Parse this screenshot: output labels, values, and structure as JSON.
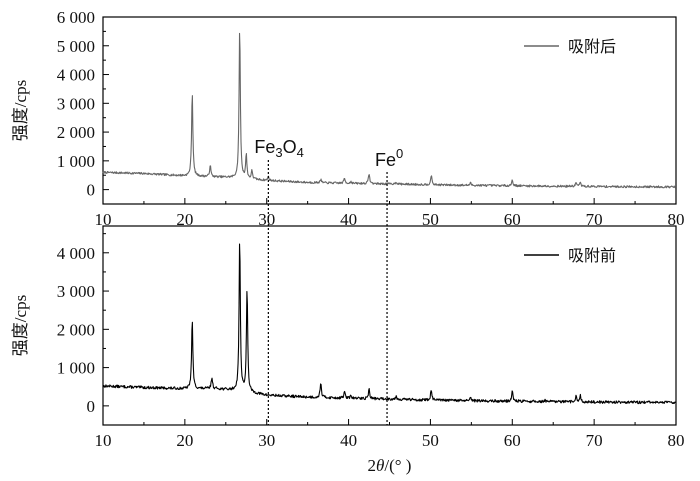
{
  "chart_data": [
    {
      "type": "line",
      "panel": "top",
      "xlim": [
        10,
        80
      ],
      "ylim": [
        -500,
        6000
      ],
      "x_ticks": [
        10,
        20,
        30,
        40,
        50,
        60,
        70,
        80
      ],
      "y_ticks": [
        0,
        1000,
        2000,
        3000,
        4000,
        5000,
        6000
      ],
      "y_tick_labels": [
        "0",
        "1 000",
        "2 000",
        "3 000",
        "4 000",
        "5 000",
        "6 000"
      ],
      "ylabel": "强度/cps",
      "legend": "top-right",
      "series": [
        {
          "name": "吸附后",
          "color": "#666666",
          "baseline": [
            [
              10,
              600
            ],
            [
              15,
              560
            ],
            [
              20,
              480
            ],
            [
              25,
              430
            ],
            [
              30,
              320
            ],
            [
              35,
              250
            ],
            [
              40,
              220
            ],
            [
              45,
              200
            ],
            [
              50,
              170
            ],
            [
              55,
              150
            ],
            [
              60,
              135
            ],
            [
              65,
              120
            ],
            [
              70,
              110
            ],
            [
              75,
              100
            ],
            [
              80,
              95
            ]
          ],
          "peaks": [
            [
              20.9,
              3400
            ],
            [
              23.1,
              850
            ],
            [
              26.7,
              5700
            ],
            [
              27.5,
              1200
            ],
            [
              28.2,
              650
            ],
            [
              30.2,
              450
            ],
            [
              36.6,
              350
            ],
            [
              39.5,
              400
            ],
            [
              40.3,
              280
            ],
            [
              42.5,
              570
            ],
            [
              45.8,
              270
            ],
            [
              50.1,
              500
            ],
            [
              54.9,
              230
            ],
            [
              60.0,
              340
            ],
            [
              67.8,
              250
            ],
            [
              68.3,
              250
            ]
          ]
        }
      ],
      "annotations": [
        {
          "text_main": "Fe",
          "sub": "3",
          "mid": "O",
          "sub2": "4",
          "x": 30.2
        },
        {
          "text_main": "Fe",
          "sup": "0",
          "x": 44.7
        }
      ]
    },
    {
      "type": "line",
      "panel": "bottom",
      "xlim": [
        10,
        80
      ],
      "ylim": [
        -500,
        4700
      ],
      "x_ticks": [
        10,
        20,
        30,
        40,
        50,
        60,
        70,
        80
      ],
      "y_ticks": [
        0,
        1000,
        2000,
        3000,
        4000
      ],
      "y_tick_labels": [
        "0",
        "1 000",
        "2 000",
        "3 000",
        "4 000"
      ],
      "ylabel": "强度/cps",
      "xlabel_parts": [
        "2",
        "θ",
        "/(° )"
      ],
      "legend": "top-right",
      "series": [
        {
          "name": "吸附前",
          "color": "#000000",
          "baseline": [
            [
              10,
              520
            ],
            [
              15,
              480
            ],
            [
              20,
              450
            ],
            [
              24,
              450
            ],
            [
              27,
              380
            ],
            [
              30,
              280
            ],
            [
              35,
              230
            ],
            [
              40,
              200
            ],
            [
              45,
              180
            ],
            [
              50,
              150
            ],
            [
              55,
              135
            ],
            [
              60,
              120
            ],
            [
              65,
              110
            ],
            [
              70,
              100
            ],
            [
              75,
              95
            ],
            [
              80,
              90
            ]
          ],
          "peaks": [
            [
              20.9,
              2250
            ],
            [
              23.3,
              750
            ],
            [
              26.7,
              4400
            ],
            [
              27.6,
              3050
            ],
            [
              36.6,
              620
            ],
            [
              39.5,
              380
            ],
            [
              40.3,
              270
            ],
            [
              42.5,
              440
            ],
            [
              45.8,
              250
            ],
            [
              50.1,
              440
            ],
            [
              54.9,
              200
            ],
            [
              60.0,
              400
            ],
            [
              64.0,
              150
            ],
            [
              67.8,
              250
            ],
            [
              68.3,
              270
            ]
          ]
        }
      ]
    }
  ],
  "reference_lines_x": [
    30.2,
    44.7
  ]
}
